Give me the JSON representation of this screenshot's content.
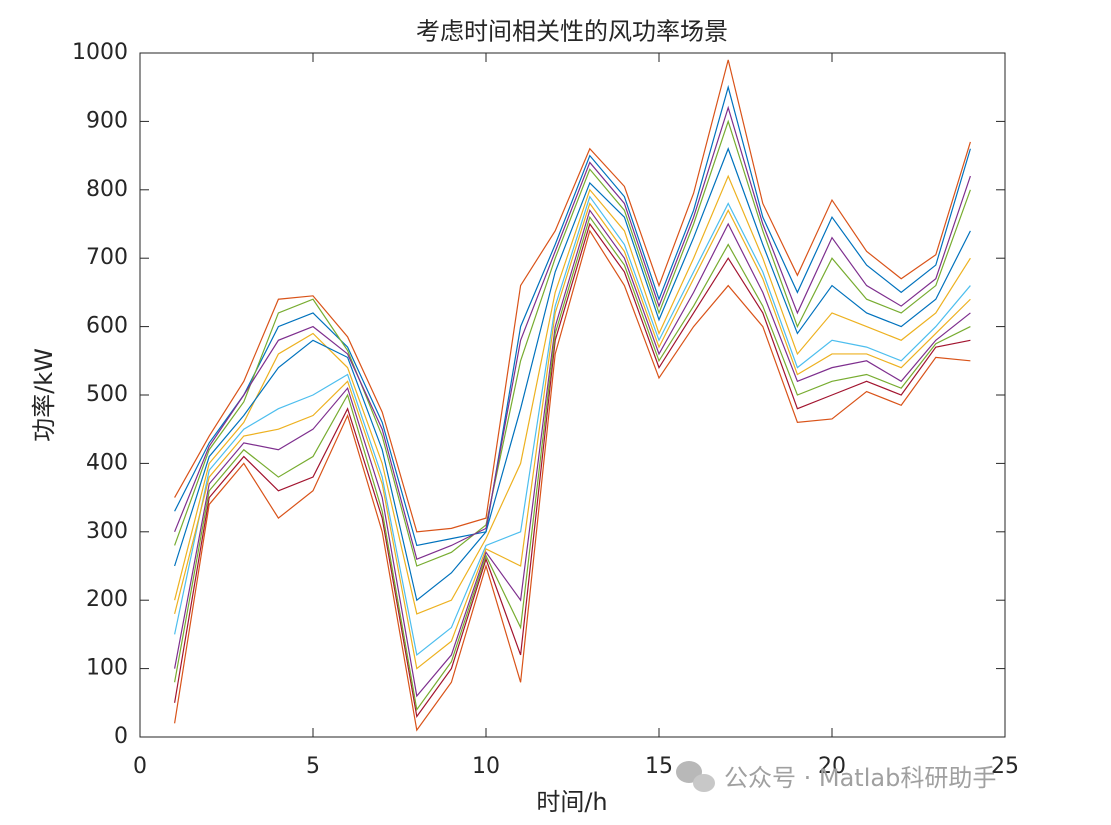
{
  "chart_data": {
    "type": "line",
    "title": "考虑时间相关性的风功率场景",
    "xlabel": "时间/h",
    "ylabel": "功率/kW",
    "watermark": "公众号 · Matlab科研助手",
    "x": [
      1,
      2,
      3,
      4,
      5,
      6,
      7,
      8,
      9,
      10,
      11,
      12,
      13,
      14,
      15,
      16,
      17,
      18,
      19,
      20,
      21,
      22,
      23,
      24
    ],
    "xlim": [
      0,
      25
    ],
    "xticks": [
      0,
      5,
      10,
      15,
      20,
      25
    ],
    "ylim": [
      0,
      1000
    ],
    "yticks": [
      0,
      100,
      200,
      300,
      400,
      500,
      600,
      700,
      800,
      900,
      1000
    ],
    "series": [
      {
        "color": "#0072BD",
        "values": [
          330,
          430,
          500,
          600,
          620,
          570,
          460,
          280,
          290,
          300,
          600,
          720,
          850,
          790,
          640,
          770,
          950,
          760,
          650,
          760,
          690,
          650,
          690,
          860
        ]
      },
      {
        "color": "#D95319",
        "values": [
          20,
          340,
          400,
          320,
          360,
          470,
          300,
          10,
          80,
          250,
          80,
          560,
          740,
          660,
          525,
          600,
          660,
          600,
          460,
          465,
          505,
          485,
          555,
          550
        ]
      },
      {
        "color": "#EDB120",
        "values": [
          200,
          400,
          460,
          560,
          590,
          540,
          400,
          180,
          200,
          290,
          400,
          650,
          800,
          740,
          590,
          700,
          820,
          700,
          560,
          620,
          600,
          580,
          620,
          700
        ]
      },
      {
        "color": "#7E2F8E",
        "values": [
          100,
          370,
          430,
          420,
          450,
          510,
          350,
          60,
          120,
          270,
          200,
          600,
          770,
          700,
          560,
          650,
          750,
          650,
          520,
          540,
          550,
          520,
          580,
          620
        ]
      },
      {
        "color": "#77AC30",
        "values": [
          280,
          420,
          490,
          620,
          640,
          565,
          440,
          250,
          270,
          310,
          550,
          700,
          830,
          770,
          620,
          750,
          900,
          740,
          600,
          700,
          640,
          620,
          660,
          800
        ]
      },
      {
        "color": "#4DBEEE",
        "values": [
          150,
          390,
          450,
          480,
          500,
          530,
          380,
          120,
          160,
          280,
          300,
          630,
          790,
          720,
          580,
          680,
          780,
          680,
          540,
          580,
          570,
          550,
          600,
          660
        ]
      },
      {
        "color": "#A2142F",
        "values": [
          50,
          350,
          410,
          360,
          380,
          480,
          320,
          30,
          100,
          260,
          120,
          580,
          750,
          680,
          540,
          620,
          700,
          620,
          480,
          500,
          520,
          500,
          570,
          580
        ]
      },
      {
        "color": "#0072BD",
        "values": [
          250,
          410,
          470,
          540,
          580,
          555,
          420,
          200,
          240,
          300,
          480,
          680,
          810,
          760,
          610,
          730,
          860,
          720,
          590,
          660,
          620,
          600,
          640,
          740
        ]
      },
      {
        "color": "#D95319",
        "values": [
          350,
          440,
          520,
          640,
          645,
          585,
          475,
          300,
          305,
          320,
          660,
          740,
          860,
          805,
          660,
          795,
          990,
          780,
          675,
          785,
          710,
          670,
          705,
          870
        ]
      },
      {
        "color": "#EDB120",
        "values": [
          180,
          380,
          440,
          450,
          470,
          520,
          370,
          100,
          140,
          275,
          250,
          620,
          780,
          710,
          570,
          670,
          770,
          670,
          530,
          560,
          560,
          540,
          590,
          640
        ]
      },
      {
        "color": "#7E2F8E",
        "values": [
          300,
          425,
          500,
          580,
          600,
          560,
          450,
          260,
          280,
          305,
          580,
          710,
          840,
          780,
          630,
          760,
          920,
          750,
          620,
          730,
          660,
          630,
          670,
          820
        ]
      },
      {
        "color": "#77AC30",
        "values": [
          80,
          360,
          420,
          380,
          410,
          500,
          330,
          40,
          110,
          265,
          160,
          590,
          760,
          690,
          550,
          630,
          720,
          630,
          500,
          520,
          530,
          510,
          575,
          600
        ]
      }
    ]
  }
}
